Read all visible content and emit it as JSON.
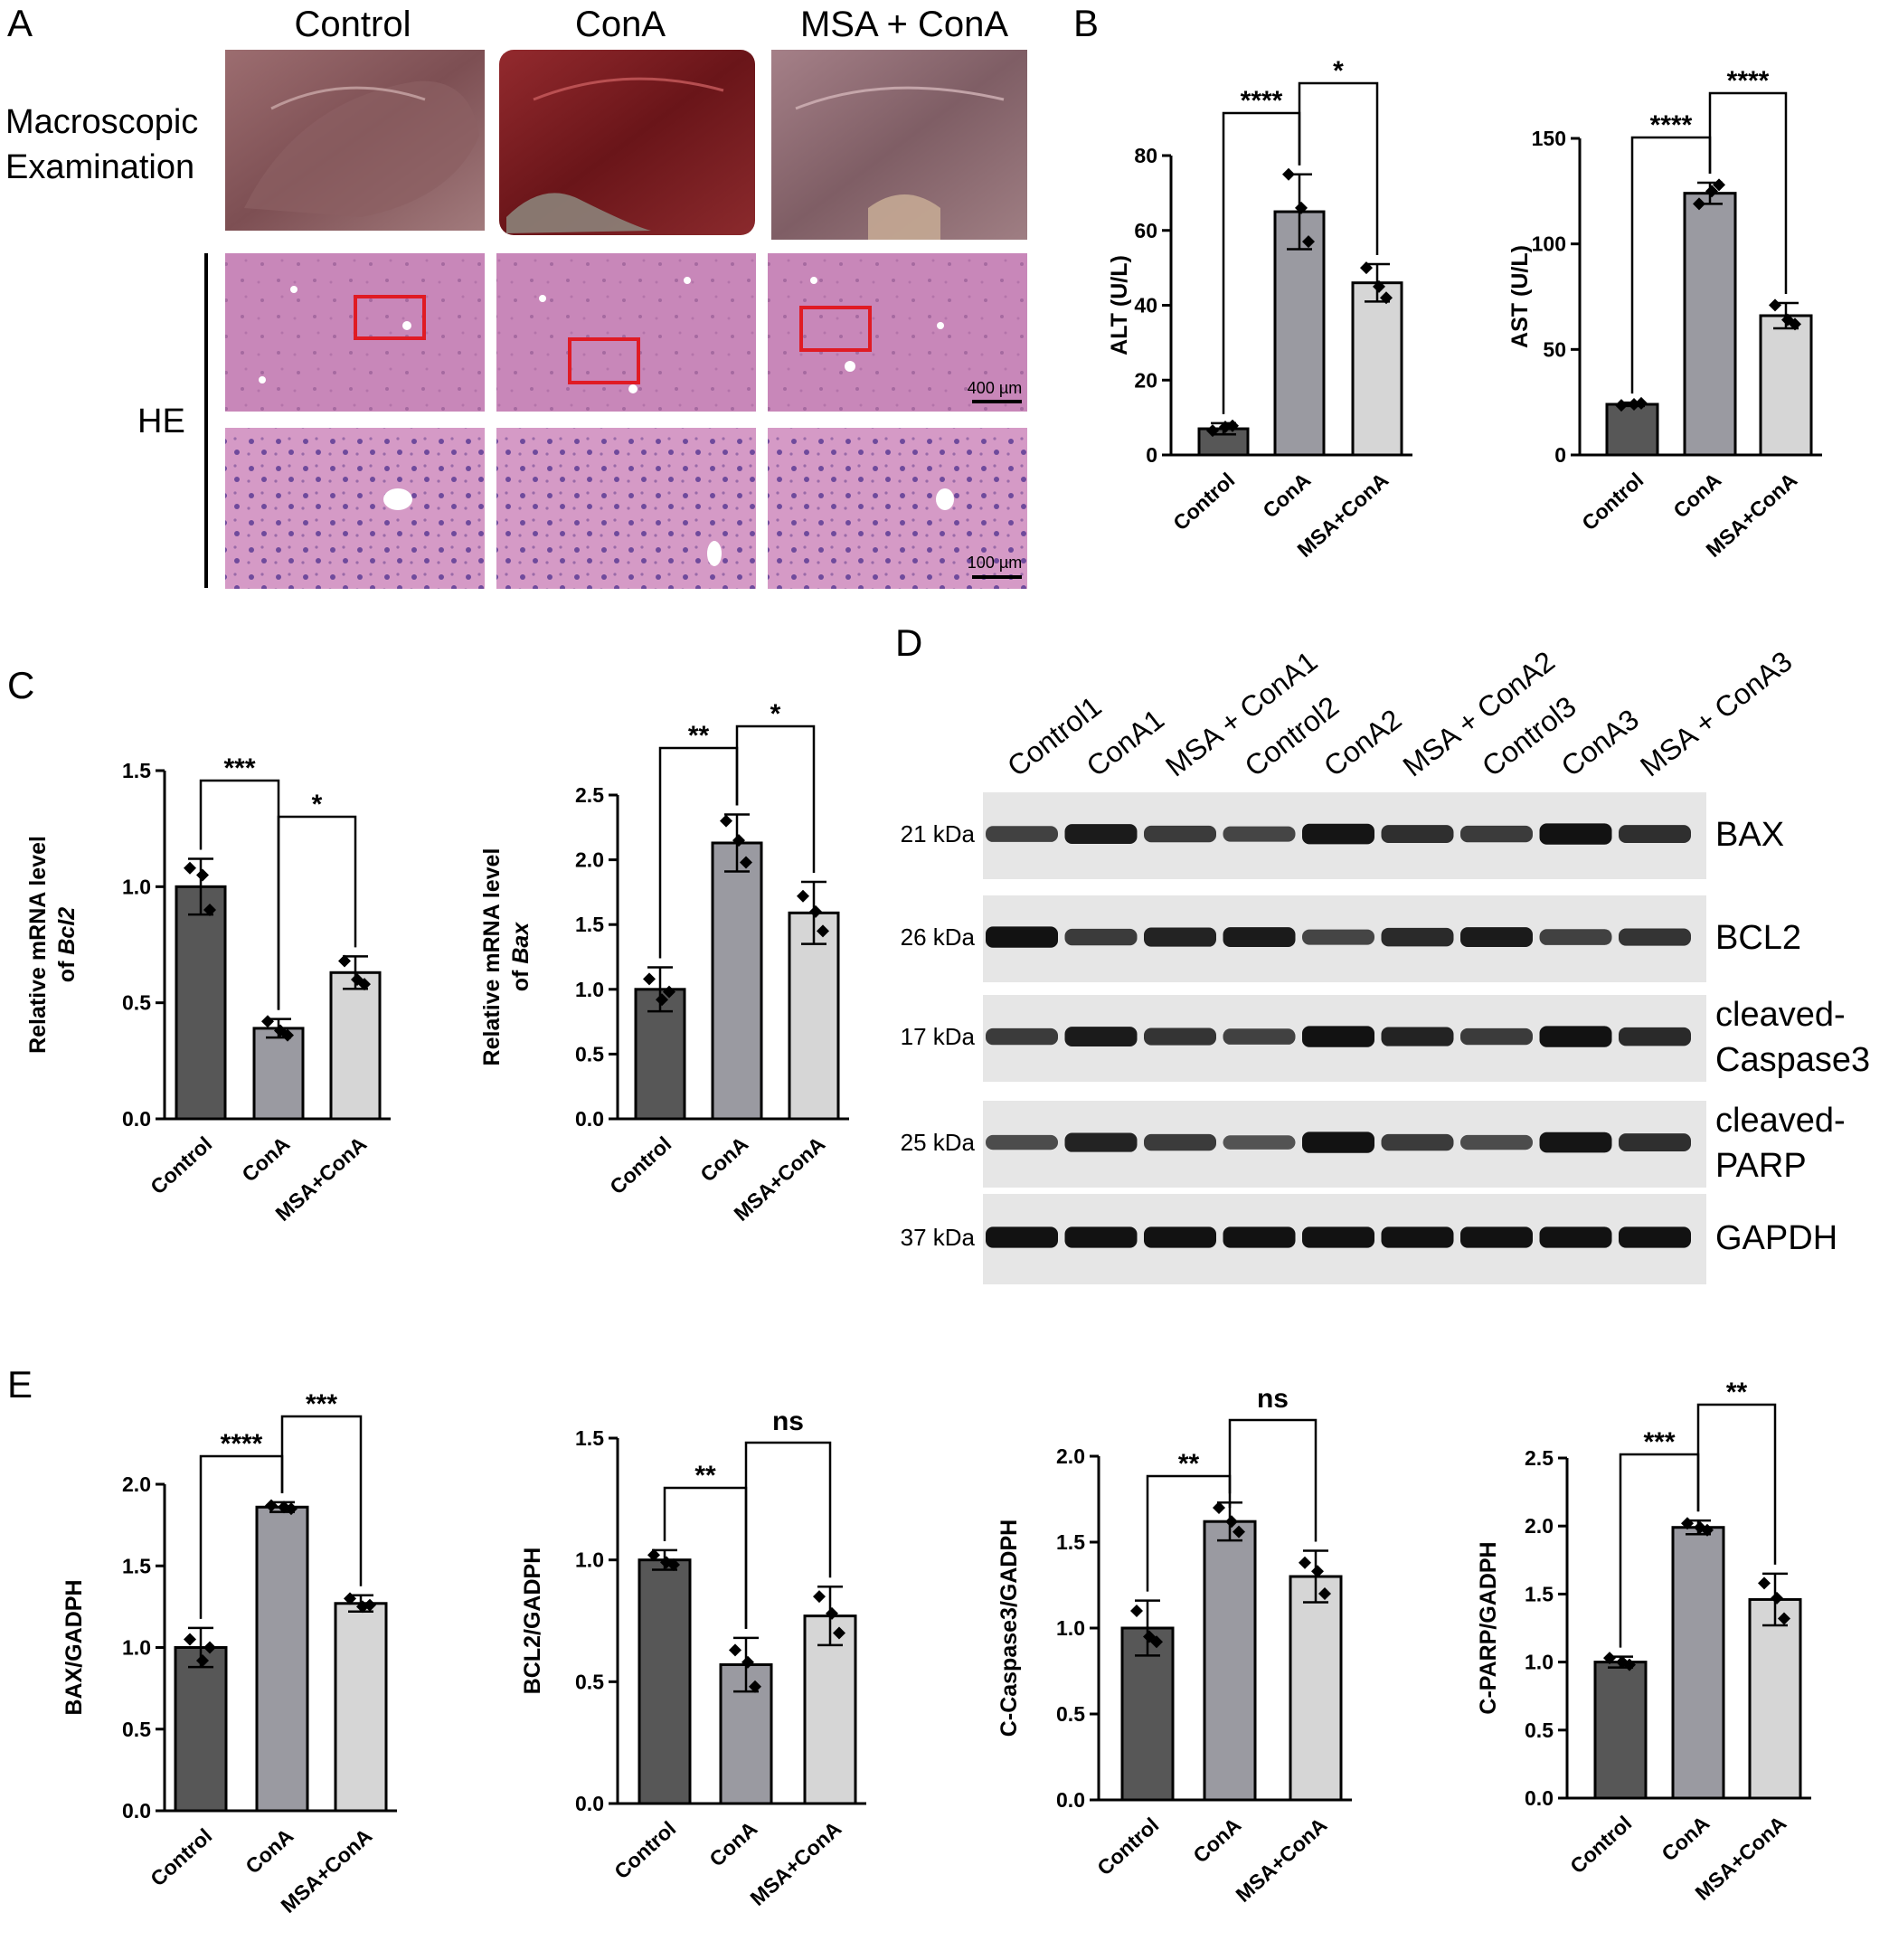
{
  "panel_letters": [
    "A",
    "B",
    "C",
    "D",
    "E"
  ],
  "panel_a": {
    "columns": [
      "Control",
      "ConA",
      "MSA + ConA"
    ],
    "row_macro": [
      "Macroscopic",
      "Examination"
    ],
    "row_he": "HE",
    "scale_400": "400 µm",
    "scale_100": "100 µm",
    "colors": {
      "control_liver": "#8a5a5e",
      "cona_liver": "#7a1e22",
      "msa_liver": "#8e6a70",
      "he_tissue": "#c47fb2",
      "box": "#e01b24"
    }
  },
  "panel_d": {
    "lanes": [
      "Control1",
      "ConA1",
      "MSA + ConA1",
      "Control2",
      "ConA2",
      "MSA + ConA2",
      "Control3",
      "ConA3",
      "MSA + ConA3"
    ],
    "blots": [
      {
        "kda": "21 kDa",
        "protein": [
          "BAX"
        ],
        "intensity": [
          0.55,
          0.85,
          0.6,
          0.5,
          0.9,
          0.7,
          0.6,
          0.95,
          0.7
        ]
      },
      {
        "kda": "26 kDa",
        "protein": [
          "BCL2"
        ],
        "intensity": [
          0.95,
          0.6,
          0.8,
          0.85,
          0.5,
          0.75,
          0.85,
          0.55,
          0.65
        ]
      },
      {
        "kda": "17 kDa",
        "protein": [
          "cleaved-",
          "Caspase3"
        ],
        "intensity": [
          0.6,
          0.85,
          0.65,
          0.55,
          0.95,
          0.8,
          0.6,
          0.95,
          0.75
        ]
      },
      {
        "kda": "25 kDa",
        "protein": [
          "cleaved-",
          "PARP"
        ],
        "intensity": [
          0.45,
          0.8,
          0.6,
          0.4,
          0.95,
          0.6,
          0.45,
          0.9,
          0.7
        ]
      },
      {
        "kda": "37 kDa",
        "protein": [
          "GAPDH"
        ],
        "intensity": [
          0.95,
          0.95,
          0.95,
          0.95,
          0.95,
          0.95,
          0.95,
          0.95,
          0.95
        ]
      }
    ],
    "colors": {
      "membrane": "#e6e6e6",
      "band": "#0a0a0a"
    }
  },
  "chart_data": [
    {
      "id": "ALT",
      "type": "bar",
      "categories": [
        "Control",
        "ConA",
        "MSA+ConA"
      ],
      "values": [
        7,
        65,
        46
      ],
      "errors": [
        1.5,
        10,
        5
      ],
      "points": [
        [
          6.5,
          7.5,
          7.8
        ],
        [
          75,
          66,
          57
        ],
        [
          50,
          45,
          42
        ]
      ],
      "ylabel": "ALT (U/L)",
      "ylim": [
        0,
        80
      ],
      "ticks": [
        0,
        20,
        40,
        60,
        80
      ],
      "significance": [
        {
          "a": 0,
          "b": 1,
          "label": "****"
        },
        {
          "a": 1,
          "b": 2,
          "label": "*"
        }
      ]
    },
    {
      "id": "AST",
      "type": "bar",
      "categories": [
        "Control",
        "ConA",
        "MSA+ConA"
      ],
      "values": [
        24,
        124,
        66
      ],
      "errors": [
        0.8,
        5,
        6
      ],
      "points": [
        [
          23.5,
          24,
          24.5
        ],
        [
          119,
          125,
          128
        ],
        [
          71,
          64,
          62
        ]
      ],
      "ylabel": "AST (U/L)",
      "ylim": [
        0,
        150
      ],
      "ticks": [
        0,
        50,
        100,
        150
      ],
      "significance": [
        {
          "a": 0,
          "b": 1,
          "label": "****"
        },
        {
          "a": 1,
          "b": 2,
          "label": "****"
        }
      ]
    },
    {
      "id": "Bcl2",
      "type": "bar",
      "categories": [
        "Control",
        "ConA",
        "MSA+ConA"
      ],
      "values": [
        1.0,
        0.39,
        0.63
      ],
      "errors": [
        0.12,
        0.04,
        0.07
      ],
      "points": [
        [
          1.08,
          1.05,
          0.9
        ],
        [
          0.42,
          0.38,
          0.36
        ],
        [
          0.68,
          0.6,
          0.58
        ]
      ],
      "ylabel": [
        "Relative mRNA level",
        "of ",
        "Bcl2"
      ],
      "ylim": [
        0,
        1.5
      ],
      "ticks": [
        0.0,
        0.5,
        1.0,
        1.5
      ],
      "significance": [
        {
          "a": 0,
          "b": 1,
          "label": "***"
        },
        {
          "a": 1,
          "b": 2,
          "label": "*"
        }
      ]
    },
    {
      "id": "Bax",
      "type": "bar",
      "categories": [
        "Control",
        "ConA",
        "MSA+ConA"
      ],
      "values": [
        1.0,
        2.13,
        1.59
      ],
      "errors": [
        0.17,
        0.22,
        0.24
      ],
      "points": [
        [
          1.08,
          0.92,
          0.98
        ],
        [
          2.3,
          2.15,
          1.98
        ],
        [
          1.72,
          1.6,
          1.45
        ]
      ],
      "ylabel": [
        "Relative mRNA level",
        "of ",
        "Bax"
      ],
      "ylim": [
        0,
        2.5
      ],
      "ticks": [
        0.0,
        0.5,
        1.0,
        1.5,
        2.0,
        2.5
      ],
      "significance": [
        {
          "a": 0,
          "b": 1,
          "label": "**"
        },
        {
          "a": 1,
          "b": 2,
          "label": "*"
        }
      ]
    },
    {
      "id": "BAX_GAPDH",
      "type": "bar",
      "categories": [
        "Control",
        "ConA",
        "MSA+ConA"
      ],
      "values": [
        1.0,
        1.86,
        1.27
      ],
      "errors": [
        0.12,
        0.03,
        0.05
      ],
      "points": [
        [
          1.05,
          0.92,
          1.0
        ],
        [
          1.87,
          1.86,
          1.85
        ],
        [
          1.3,
          1.25,
          1.26
        ]
      ],
      "ylabel": "BAX/GADPH",
      "ylim": [
        0,
        2.0
      ],
      "ticks": [
        0.0,
        0.5,
        1.0,
        1.5,
        2.0
      ],
      "significance": [
        {
          "a": 0,
          "b": 1,
          "label": "****"
        },
        {
          "a": 1,
          "b": 2,
          "label": "***"
        }
      ]
    },
    {
      "id": "BCL2_GAPDH",
      "type": "bar",
      "categories": [
        "Control",
        "ConA",
        "MSA+ConA"
      ],
      "values": [
        1.0,
        0.57,
        0.77
      ],
      "errors": [
        0.04,
        0.11,
        0.12
      ],
      "points": [
        [
          1.02,
          0.99,
          0.98
        ],
        [
          0.63,
          0.58,
          0.48
        ],
        [
          0.85,
          0.78,
          0.7
        ]
      ],
      "ylabel": "BCL2/GADPH",
      "ylim": [
        0,
        1.5
      ],
      "ticks": [
        0.0,
        0.5,
        1.0,
        1.5
      ],
      "significance": [
        {
          "a": 0,
          "b": 1,
          "label": "**"
        },
        {
          "a": 1,
          "b": 2,
          "label": "ns"
        }
      ]
    },
    {
      "id": "CCasp3_GAPDH",
      "type": "bar",
      "categories": [
        "Control",
        "ConA",
        "MSA+ConA"
      ],
      "values": [
        1.0,
        1.62,
        1.3
      ],
      "errors": [
        0.16,
        0.11,
        0.15
      ],
      "points": [
        [
          1.1,
          0.95,
          0.92
        ],
        [
          1.7,
          1.62,
          1.56
        ],
        [
          1.38,
          1.33,
          1.2
        ]
      ],
      "ylabel": "C-Caspase3/GADPH",
      "ylim": [
        0,
        2.0
      ],
      "ticks": [
        0.0,
        0.5,
        1.0,
        1.5,
        2.0
      ],
      "significance": [
        {
          "a": 0,
          "b": 1,
          "label": "**"
        },
        {
          "a": 1,
          "b": 2,
          "label": "ns"
        }
      ]
    },
    {
      "id": "CPARP_GAPDH",
      "type": "bar",
      "categories": [
        "Control",
        "ConA",
        "MSA+ConA"
      ],
      "values": [
        1.0,
        1.99,
        1.46
      ],
      "errors": [
        0.04,
        0.05,
        0.19
      ],
      "points": [
        [
          1.03,
          1.0,
          0.98
        ],
        [
          2.02,
          1.99,
          1.97
        ],
        [
          1.58,
          1.47,
          1.32
        ]
      ],
      "ylabel": "C-PARP/GADPH",
      "ylim": [
        0,
        2.5
      ],
      "ticks": [
        0.0,
        0.5,
        1.0,
        1.5,
        2.0,
        2.5
      ],
      "significance": [
        {
          "a": 0,
          "b": 1,
          "label": "***"
        },
        {
          "a": 1,
          "b": 2,
          "label": "**"
        }
      ]
    }
  ],
  "bar_colors": [
    "#575757",
    "#9a9aa1",
    "#d6d6d6"
  ]
}
